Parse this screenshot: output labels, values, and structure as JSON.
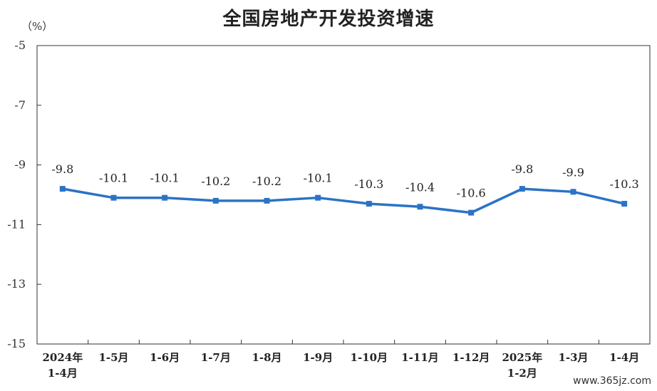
{
  "chart_data": {
    "type": "line",
    "title": "全国房地产开发投资增速",
    "ylabel": "（%）",
    "categories": [
      "2024年\n1-4月",
      "1-5月",
      "1-6月",
      "1-7月",
      "1-8月",
      "1-9月",
      "1-10月",
      "1-11月",
      "1-12月",
      "2025年\n1-2月",
      "1-3月",
      "1-4月"
    ],
    "series": [
      {
        "values": [
          -9.8,
          -10.1,
          -10.1,
          -10.2,
          -10.2,
          -10.1,
          -10.3,
          -10.4,
          -10.6,
          -9.8,
          -9.9,
          -10.3
        ]
      }
    ],
    "data_labels": [
      "-9.8",
      "-10.1",
      "-10.1",
      "-10.2",
      "-10.2",
      "-10.1",
      "-10.3",
      "-10.4",
      "-10.6",
      "-9.8",
      "-9.9",
      "-10.3"
    ],
    "ylim": [
      -15,
      -5
    ],
    "yticks": [
      -5,
      -7,
      -9,
      -11,
      -13,
      -15
    ],
    "ytick_labels": [
      "-5",
      "-7",
      "-9",
      "-11",
      "-13",
      "-15"
    ],
    "grid": false,
    "legend": "none",
    "line_color": "#2b73c6",
    "watermark": "www.365jz.com"
  }
}
